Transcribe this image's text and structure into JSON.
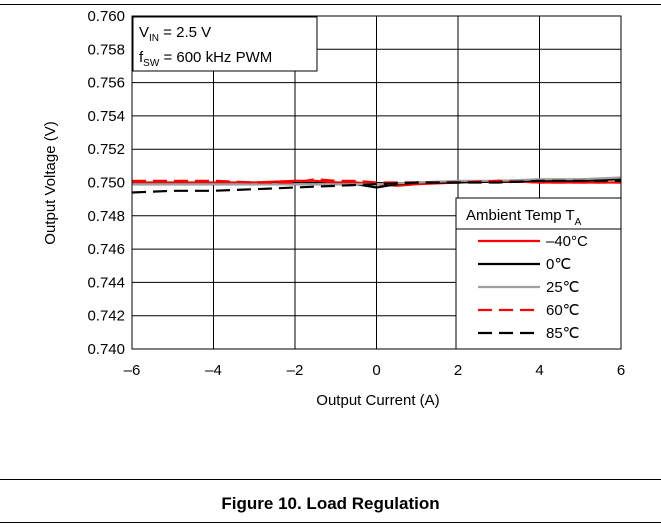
{
  "chart_data": {
    "type": "line",
    "xlabel": "Output Current (A)",
    "ylabel": "Output Voltage (V)",
    "xlim": [
      -6,
      6
    ],
    "ylim": [
      0.74,
      0.76
    ],
    "x_ticks": [
      "–6",
      "–4",
      "–2",
      "0",
      "2",
      "4",
      "6"
    ],
    "y_ticks": [
      "0.740",
      "0.742",
      "0.744",
      "0.746",
      "0.748",
      "0.750",
      "0.752",
      "0.754",
      "0.756",
      "0.758",
      "0.760"
    ],
    "grid": true,
    "annotation": {
      "line1_main": "V",
      "line1_sub": "IN",
      "line1_rest": " = 2.5 V",
      "line2_main": "f",
      "line2_sub": "SW",
      "line2_rest": " = 600 kHz PWM"
    },
    "legend": {
      "title_main": "Ambient Temp T",
      "title_sub": "A",
      "placement": "lower-right"
    },
    "series": [
      {
        "name": "–40°C",
        "color": "#ff0000",
        "dash": "solid",
        "x": [
          -6,
          -5,
          -4,
          -3,
          -2,
          -1.5,
          -1,
          -0.5,
          0,
          0.5,
          1,
          2,
          3,
          4,
          5,
          6
        ],
        "y": [
          0.75,
          0.75,
          0.75,
          0.75,
          0.7501,
          0.7501,
          0.75,
          0.75,
          0.7499,
          0.7498,
          0.7499,
          0.75,
          0.7501,
          0.75,
          0.75,
          0.75
        ]
      },
      {
        "name": "0℃",
        "color": "#000000",
        "dash": "solid",
        "x": [
          -6,
          -5,
          -4,
          -3,
          -2,
          -1,
          -0.5,
          0,
          0.5,
          1,
          2,
          3,
          4,
          5,
          6
        ],
        "y": [
          0.7499,
          0.7499,
          0.7499,
          0.7499,
          0.7499,
          0.7499,
          0.7499,
          0.7497,
          0.7499,
          0.75,
          0.75,
          0.7501,
          0.7501,
          0.7501,
          0.7502
        ]
      },
      {
        "name": "25℃",
        "color": "#a0a0a0",
        "dash": "solid",
        "x": [
          -6,
          -5,
          -4,
          -3,
          -2,
          -1,
          0,
          1,
          2,
          3,
          4,
          5,
          6
        ],
        "y": [
          0.7499,
          0.7499,
          0.7499,
          0.7499,
          0.7499,
          0.7499,
          0.7499,
          0.75,
          0.7501,
          0.7501,
          0.7502,
          0.7502,
          0.7503
        ]
      },
      {
        "name": "60℃",
        "color": "#ff0000",
        "dash": "dashed",
        "x": [
          -6,
          -5,
          -4,
          -3,
          -2,
          -1.5,
          -1,
          -0.5,
          0,
          0.5,
          1,
          2,
          3,
          4,
          5,
          6
        ],
        "y": [
          0.7501,
          0.7501,
          0.7501,
          0.75,
          0.75,
          0.7502,
          0.7501,
          0.7501,
          0.75,
          0.75,
          0.75,
          0.75,
          0.7501,
          0.75,
          0.75,
          0.75
        ]
      },
      {
        "name": "85℃",
        "color": "#000000",
        "dash": "dashed",
        "x": [
          -6,
          -5,
          -4,
          -3,
          -2,
          -1,
          0,
          1,
          2,
          3,
          4,
          5,
          6
        ],
        "y": [
          0.7494,
          0.7495,
          0.7495,
          0.7496,
          0.7497,
          0.7498,
          0.7499,
          0.75,
          0.75,
          0.75,
          0.7501,
          0.7501,
          0.7501
        ]
      }
    ]
  },
  "figure": {
    "caption": "Figure 10. Load Regulation"
  }
}
